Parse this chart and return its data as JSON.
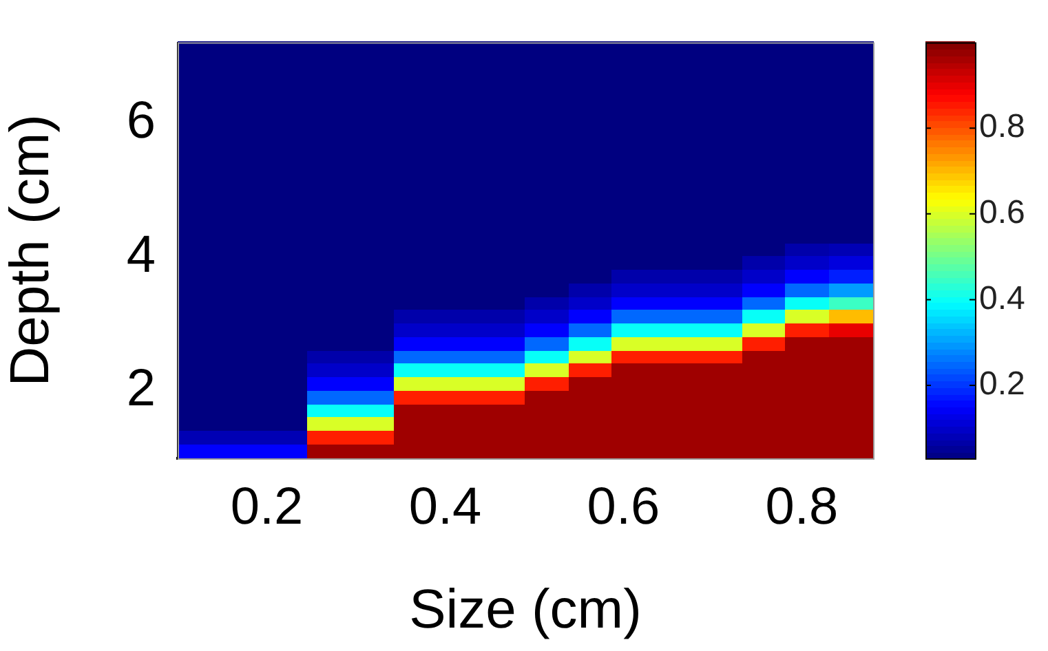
{
  "chart_data": {
    "type": "heatmap",
    "xlabel": "Size (cm)",
    "ylabel": "Depth (cm)",
    "cells": [
      [
        0.03,
        0.03,
        0.03,
        0.03,
        0.03,
        0.03,
        0.03,
        0.03,
        0.03,
        0.03,
        0.03,
        0.03,
        0.03,
        0.03,
        0.03,
        0.03
      ],
      [
        0.03,
        0.03,
        0.03,
        0.03,
        0.03,
        0.03,
        0.03,
        0.03,
        0.03,
        0.03,
        0.03,
        0.03,
        0.03,
        0.03,
        0.03,
        0.03
      ],
      [
        0.03,
        0.03,
        0.03,
        0.03,
        0.03,
        0.03,
        0.03,
        0.03,
        0.03,
        0.03,
        0.03,
        0.03,
        0.03,
        0.03,
        0.03,
        0.03
      ],
      [
        0.03,
        0.03,
        0.03,
        0.03,
        0.03,
        0.03,
        0.03,
        0.03,
        0.03,
        0.03,
        0.03,
        0.03,
        0.03,
        0.03,
        0.03,
        0.03
      ],
      [
        0.03,
        0.03,
        0.03,
        0.03,
        0.03,
        0.03,
        0.03,
        0.03,
        0.03,
        0.03,
        0.03,
        0.03,
        0.03,
        0.03,
        0.03,
        0.03
      ],
      [
        0.03,
        0.03,
        0.03,
        0.03,
        0.03,
        0.03,
        0.03,
        0.03,
        0.03,
        0.03,
        0.03,
        0.03,
        0.03,
        0.03,
        0.03,
        0.03
      ],
      [
        0.03,
        0.03,
        0.03,
        0.03,
        0.03,
        0.03,
        0.03,
        0.03,
        0.03,
        0.03,
        0.03,
        0.03,
        0.03,
        0.03,
        0.03,
        0.03
      ],
      [
        0.03,
        0.03,
        0.03,
        0.03,
        0.03,
        0.03,
        0.03,
        0.03,
        0.03,
        0.03,
        0.03,
        0.03,
        0.03,
        0.03,
        0.03,
        0.03
      ],
      [
        0.03,
        0.03,
        0.03,
        0.03,
        0.03,
        0.03,
        0.03,
        0.03,
        0.03,
        0.03,
        0.03,
        0.03,
        0.03,
        0.03,
        0.03,
        0.03
      ],
      [
        0.03,
        0.03,
        0.03,
        0.03,
        0.03,
        0.03,
        0.03,
        0.03,
        0.03,
        0.03,
        0.03,
        0.03,
        0.03,
        0.03,
        0.03,
        0.03
      ],
      [
        0.03,
        0.03,
        0.03,
        0.03,
        0.03,
        0.03,
        0.03,
        0.03,
        0.03,
        0.03,
        0.03,
        0.03,
        0.03,
        0.03,
        0.03,
        0.03
      ],
      [
        0.03,
        0.03,
        0.03,
        0.03,
        0.03,
        0.03,
        0.03,
        0.03,
        0.03,
        0.03,
        0.03,
        0.03,
        0.03,
        0.03,
        0.03,
        0.03
      ],
      [
        0.03,
        0.03,
        0.03,
        0.03,
        0.03,
        0.03,
        0.03,
        0.03,
        0.03,
        0.03,
        0.03,
        0.03,
        0.03,
        0.03,
        0.03,
        0.03
      ],
      [
        0.03,
        0.03,
        0.03,
        0.03,
        0.03,
        0.03,
        0.03,
        0.03,
        0.03,
        0.03,
        0.03,
        0.03,
        0.03,
        0.03,
        0.03,
        0.03
      ],
      [
        0.03,
        0.03,
        0.03,
        0.03,
        0.03,
        0.03,
        0.03,
        0.03,
        0.03,
        0.03,
        0.03,
        0.03,
        0.03,
        0.03,
        0.03,
        0.03
      ],
      [
        0.03,
        0.03,
        0.03,
        0.03,
        0.03,
        0.03,
        0.03,
        0.03,
        0.03,
        0.03,
        0.03,
        0.03,
        0.03,
        0.03,
        0.07,
        0.08
      ],
      [
        0.03,
        0.03,
        0.03,
        0.03,
        0.03,
        0.03,
        0.03,
        0.03,
        0.03,
        0.03,
        0.03,
        0.03,
        0.03,
        0.07,
        0.1,
        0.12
      ],
      [
        0.03,
        0.03,
        0.03,
        0.03,
        0.03,
        0.03,
        0.03,
        0.03,
        0.03,
        0.03,
        0.07,
        0.07,
        0.07,
        0.1,
        0.15,
        0.18
      ],
      [
        0.03,
        0.03,
        0.03,
        0.03,
        0.03,
        0.03,
        0.03,
        0.03,
        0.03,
        0.07,
        0.1,
        0.1,
        0.1,
        0.15,
        0.25,
        0.3
      ],
      [
        0.03,
        0.03,
        0.03,
        0.03,
        0.03,
        0.03,
        0.03,
        0.03,
        0.07,
        0.1,
        0.15,
        0.15,
        0.15,
        0.25,
        0.4,
        0.45
      ],
      [
        0.03,
        0.03,
        0.03,
        0.03,
        0.03,
        0.07,
        0.07,
        0.07,
        0.1,
        0.15,
        0.25,
        0.25,
        0.25,
        0.4,
        0.6,
        0.7
      ],
      [
        0.03,
        0.03,
        0.03,
        0.03,
        0.03,
        0.1,
        0.1,
        0.1,
        0.15,
        0.25,
        0.4,
        0.4,
        0.4,
        0.6,
        0.85,
        0.9
      ],
      [
        0.03,
        0.03,
        0.03,
        0.03,
        0.03,
        0.15,
        0.15,
        0.15,
        0.25,
        0.4,
        0.6,
        0.6,
        0.6,
        0.85,
        0.97,
        0.97
      ],
      [
        0.03,
        0.03,
        0.03,
        0.07,
        0.07,
        0.25,
        0.25,
        0.25,
        0.4,
        0.6,
        0.85,
        0.85,
        0.85,
        0.97,
        0.97,
        0.97
      ],
      [
        0.03,
        0.03,
        0.03,
        0.1,
        0.1,
        0.4,
        0.4,
        0.4,
        0.6,
        0.85,
        0.97,
        0.97,
        0.97,
        0.97,
        0.97,
        0.97
      ],
      [
        0.03,
        0.03,
        0.03,
        0.15,
        0.15,
        0.6,
        0.6,
        0.6,
        0.85,
        0.97,
        0.97,
        0.97,
        0.97,
        0.97,
        0.97,
        0.97
      ],
      [
        0.03,
        0.03,
        0.03,
        0.25,
        0.25,
        0.85,
        0.85,
        0.85,
        0.97,
        0.97,
        0.97,
        0.97,
        0.97,
        0.97,
        0.97,
        0.97
      ],
      [
        0.03,
        0.03,
        0.03,
        0.4,
        0.4,
        0.97,
        0.97,
        0.97,
        0.97,
        0.97,
        0.97,
        0.97,
        0.97,
        0.97,
        0.97,
        0.97
      ],
      [
        0.03,
        0.03,
        0.03,
        0.6,
        0.6,
        0.97,
        0.97,
        0.97,
        0.97,
        0.97,
        0.97,
        0.97,
        0.97,
        0.97,
        0.97,
        0.97
      ],
      [
        0.08,
        0.08,
        0.08,
        0.85,
        0.85,
        0.97,
        0.97,
        0.97,
        0.97,
        0.97,
        0.97,
        0.97,
        0.97,
        0.97,
        0.97,
        0.97
      ],
      [
        0.15,
        0.15,
        0.15,
        0.97,
        0.97,
        0.97,
        0.97,
        0.97,
        0.97,
        0.97,
        0.97,
        0.97,
        0.97,
        0.97,
        0.97,
        0.97
      ]
    ],
    "clim": [
      0.03,
      1
    ],
    "cticks": [
      0.2,
      0.4,
      0.6,
      0.8
    ],
    "xlim": [
      0.1,
      0.88
    ],
    "xticks": [
      0.2,
      0.4,
      0.6,
      0.8
    ],
    "ylim": [
      1,
      7.2
    ],
    "yticks": [
      2,
      4,
      6
    ]
  }
}
